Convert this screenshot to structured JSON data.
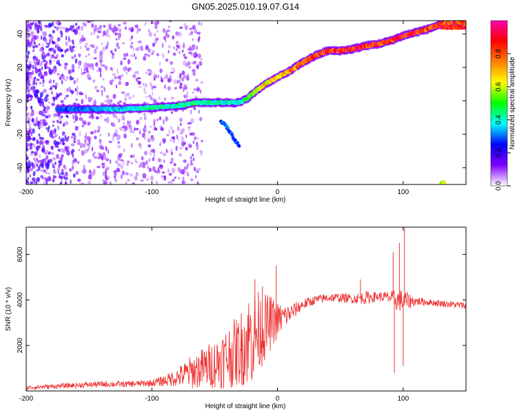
{
  "title": "GN05.2025.010.19.07.G14",
  "chart_data": [
    {
      "type": "heatmap",
      "xlabel": "Height of straight line (km)",
      "ylabel": "Frequency (Hz)",
      "xlim": [
        -200,
        150
      ],
      "ylim": [
        -50,
        48
      ],
      "xticks": [
        -200,
        -100,
        0,
        100
      ],
      "yticks": [
        -40,
        -20,
        0,
        20,
        40
      ],
      "colorbar": {
        "label": "Normalized spectral amplitude",
        "range": [
          0,
          1
        ],
        "ticks": [
          0.0,
          0.2,
          0.4,
          0.6,
          0.8
        ],
        "tick_labels": [
          "0.0",
          "0.2",
          "0.4",
          "0.6",
          "0.8"
        ],
        "colormap": [
          "#ffffff",
          "#8000ff",
          "#0000ff",
          "#00ffff",
          "#00ff00",
          "#ffff00",
          "#ff8000",
          "#ff0000",
          "#ff00aa"
        ]
      },
      "ridge": {
        "x": [
          -175,
          -150,
          -125,
          -100,
          -80,
          -65,
          -50,
          -40,
          -30,
          -25,
          -20,
          -10,
          0,
          10,
          20,
          30,
          40,
          50,
          60,
          70,
          80,
          90,
          100,
          110,
          120,
          130,
          140,
          150
        ],
        "y": [
          -5,
          -5,
          -5,
          -4,
          -3,
          -1,
          -1,
          -1,
          -1,
          1,
          4,
          10,
          14,
          18,
          23,
          27,
          30,
          30,
          31,
          33,
          34,
          36,
          39,
          41,
          43,
          46,
          47,
          47
        ],
        "amplitude": [
          0.3,
          0.35,
          0.4,
          0.45,
          0.45,
          0.5,
          0.45,
          0.45,
          0.45,
          0.55,
          0.6,
          0.7,
          0.75,
          0.8,
          0.85,
          0.9,
          0.95,
          0.95,
          0.95,
          0.95,
          0.95,
          0.95,
          0.95,
          0.95,
          0.95,
          0.95,
          0.95,
          0.95
        ]
      },
      "secondary_features": [
        {
          "x": [
            -45,
            -40,
            -35,
            -30
          ],
          "y": [
            -12,
            -16,
            -22,
            -28
          ],
          "amplitude": 0.3
        },
        {
          "x": [
            130,
            135,
            140,
            145,
            150
          ],
          "y": [
            44,
            44,
            44,
            44,
            44
          ],
          "amplitude": 0.9
        },
        {
          "x": [
            130,
            133
          ],
          "y": [
            -49,
            -49
          ],
          "amplitude": 0.6
        }
      ]
    },
    {
      "type": "line",
      "xlabel": "Height of straight line (km)",
      "ylabel": "SNR (10 * v/v)",
      "xlim": [
        -200,
        150
      ],
      "ylim": [
        0,
        7200
      ],
      "xticks": [
        -200,
        -100,
        0,
        100
      ],
      "yticks": [
        2000,
        4000,
        6000
      ],
      "color": "#ee3333",
      "series": [
        {
          "x": [
            -200,
            -180,
            -160,
            -140,
            -120,
            -100,
            -90,
            -80,
            -70,
            -60,
            -50,
            -40,
            -30,
            -25,
            -20,
            -15,
            -10,
            -5,
            0,
            10,
            20,
            30,
            40,
            50,
            60,
            70,
            80,
            90,
            95,
            100,
            110,
            120,
            130,
            140,
            150
          ],
          "y": [
            150,
            200,
            250,
            300,
            300,
            350,
            450,
            600,
            800,
            1000,
            1200,
            1500,
            1800,
            2200,
            2400,
            2600,
            2800,
            3000,
            3100,
            3400,
            3800,
            4000,
            4100,
            4100,
            4050,
            4100,
            4150,
            4100,
            4000,
            3950,
            3950,
            3900,
            3850,
            3800,
            3750
          ],
          "noise_amplitude": [
            100,
            100,
            120,
            130,
            130,
            150,
            250,
            400,
            700,
            900,
            1100,
            1400,
            1600,
            2000,
            2200,
            1800,
            1500,
            1200,
            800,
            400,
            250,
            200,
            200,
            200,
            200,
            300,
            200,
            300,
            500,
            500,
            200,
            150,
            150,
            150,
            150
          ]
        }
      ],
      "spikes": [
        {
          "x": -18,
          "y": 4900
        },
        {
          "x": -12,
          "y": 4600
        },
        {
          "x": -1,
          "y": 5500
        },
        {
          "x": 66,
          "y": 4900
        },
        {
          "x": 92,
          "y": 6100
        },
        {
          "x": 97,
          "y": 6500
        },
        {
          "x": 101,
          "y": 7200
        },
        {
          "x": 93,
          "y": 800
        },
        {
          "x": 100,
          "y": 1100
        }
      ]
    }
  ]
}
